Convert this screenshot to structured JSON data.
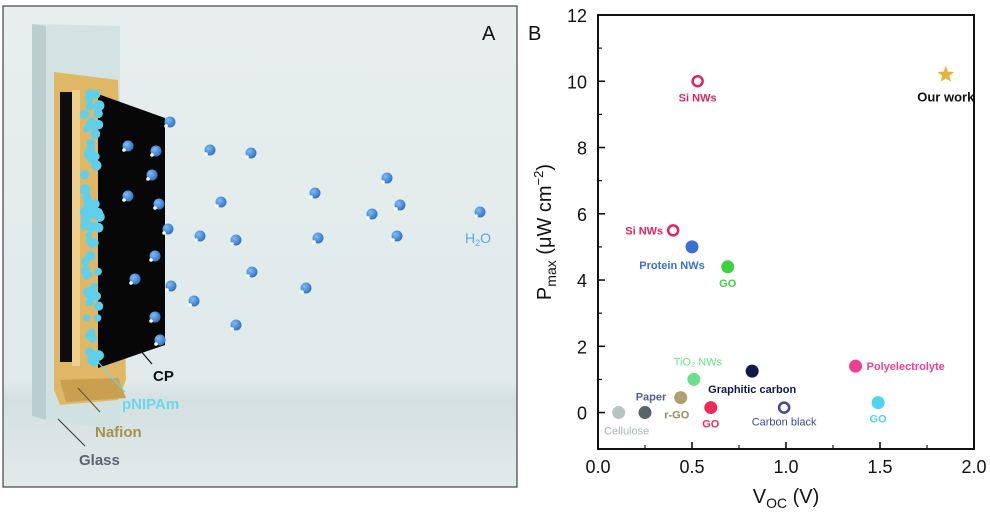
{
  "panel_a": {
    "label": "A",
    "labels": {
      "cp": "CP",
      "pnipam": "pNIPAm",
      "nafion": "Nafion",
      "glass": "Glass",
      "water_main": "H",
      "water_sub": "2",
      "water_tail": "O"
    },
    "colors": {
      "background": "#e3ecec",
      "glass": "#c9dcdc",
      "nafion": "#e0b865",
      "cp": "#0a0a0a",
      "pnipam": "#5fd0ec",
      "water": "#3a8ad8",
      "cp_label": "#111111",
      "pnipam_label": "#6ad6f0",
      "nafion_label": "#a8914a",
      "glass_label": "#5a6570",
      "water_label": "#5aa6e0"
    }
  },
  "panel_b": {
    "label": "B"
  },
  "chart_data": {
    "type": "scatter",
    "title": "",
    "xlabel_main": "V",
    "xlabel_sub": "OC",
    "xlabel_tail": " (V)",
    "ylabel_main": "P",
    "ylabel_sub": "max",
    "ylabel_tail": " (μW cm",
    "ylabel_sup": "−2",
    "ylabel_close": ")",
    "xlim": [
      0.0,
      2.0
    ],
    "ylim": [
      -1.1,
      12
    ],
    "xticks": [
      "0.0",
      "0.5",
      "1.0",
      "1.5",
      "2.0"
    ],
    "xtick_values": [
      0.0,
      0.5,
      1.0,
      1.5,
      2.0
    ],
    "xminor": [
      0.25,
      0.75,
      1.25,
      1.75
    ],
    "yticks": [
      "0",
      "2",
      "4",
      "6",
      "8",
      "10",
      "12"
    ],
    "ytick_values": [
      0,
      2,
      4,
      6,
      8,
      10,
      12
    ],
    "yminor": [
      1,
      3,
      5,
      7,
      9,
      11
    ],
    "grid": false,
    "legend": "none",
    "points": [
      {
        "name": "Si NWs",
        "x": 0.53,
        "y": 10.0,
        "marker": "open-circle",
        "color": "#e0245e",
        "label_pos": "below"
      },
      {
        "name": "Si NWs",
        "x": 0.4,
        "y": 5.5,
        "marker": "open-circle",
        "color": "#e0245e",
        "label_pos": "left"
      },
      {
        "name": "Protein NWs",
        "x": 0.5,
        "y": 5.0,
        "marker": "circle",
        "color": "#3a6fd0",
        "label_pos": "below"
      },
      {
        "name": "GO",
        "x": 0.69,
        "y": 4.4,
        "marker": "circle",
        "color": "#3ed13e",
        "label_pos": "below"
      },
      {
        "name": "TiO₂ NWs",
        "x": 0.51,
        "y": 1.0,
        "marker": "circle",
        "color": "#6be08a",
        "label_pos": "above"
      },
      {
        "name": "Graphitic carbon",
        "x": 0.82,
        "y": 1.25,
        "marker": "circle",
        "color": "#101a4a",
        "label_pos": "below"
      },
      {
        "name": "Polyelectrolyte",
        "x": 1.37,
        "y": 1.4,
        "marker": "circle",
        "color": "#ee3e90",
        "label_pos": "right"
      },
      {
        "name": "GO",
        "x": 1.49,
        "y": 0.3,
        "marker": "circle",
        "color": "#4fd4ec",
        "label_pos": "below"
      },
      {
        "name": "Carbon black",
        "x": 0.99,
        "y": 0.15,
        "marker": "open-circle",
        "color": "#3c4c8a",
        "label_pos": "below"
      },
      {
        "name": "GO",
        "x": 0.6,
        "y": 0.15,
        "marker": "circle",
        "color": "#ee2a55",
        "label_pos": "below"
      },
      {
        "name": "r-GO",
        "x": 0.44,
        "y": 0.45,
        "marker": "circle",
        "color": "#b0a070",
        "label_pos": "below"
      },
      {
        "name": "Paper",
        "x": 0.25,
        "y": 0.0,
        "marker": "circle",
        "color": "#5a6468",
        "label_pos": "above"
      },
      {
        "name": "Cellulose",
        "x": 0.11,
        "y": 0.0,
        "marker": "circle",
        "color": "#b8c4c4",
        "label_pos": "below"
      },
      {
        "name": "Our work",
        "x": 1.85,
        "y": 10.2,
        "marker": "star",
        "color": "#e6b43a",
        "label_pos": "below"
      }
    ],
    "label_colors": {
      "Si NWs": "#e0245e",
      "Protein NWs": "#3a6fd0",
      "GO-green": "#3ed13e",
      "TiO₂ NWs": "#6be08a",
      "Graphitic carbon": "#101a4a",
      "Polyelectrolyte": "#ee3e90",
      "GO-cyan": "#4fd4ec",
      "Carbon black": "#3c4c8a",
      "GO-red": "#ee2a55",
      "r-GO": "#9a8a5a",
      "Paper": "#55608a",
      "Cellulose": "#a8b4b8",
      "Our work": "#111111"
    }
  }
}
